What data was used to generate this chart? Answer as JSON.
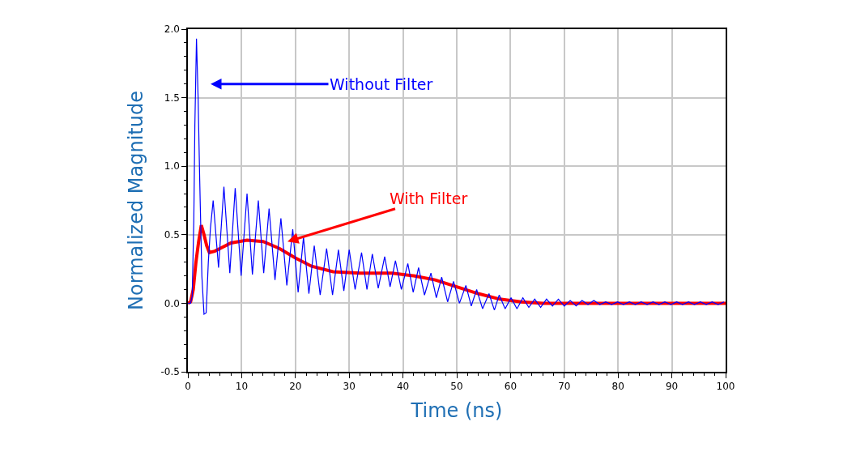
{
  "chart_data": {
    "type": "line",
    "xlabel": "Time (ns)",
    "ylabel": "Normalized Magnitude",
    "xlim": [
      0,
      100
    ],
    "ylim": [
      -0.5,
      2.0
    ],
    "xticks": [
      0,
      10,
      20,
      30,
      40,
      50,
      60,
      70,
      80,
      90,
      100
    ],
    "yticks": [
      {
        "value": -0.5,
        "label": "-0.5"
      },
      {
        "value": 0,
        "label": "0.0"
      },
      {
        "value": 0.5,
        "label": "0.5"
      },
      {
        "value": 1,
        "label": "1.0"
      },
      {
        "value": 1.5,
        "label": "1.5"
      },
      {
        "value": 2,
        "label": "2.0"
      }
    ],
    "grid": true,
    "marker": "none",
    "line_style": "solid",
    "series": [
      {
        "color": "#0000ff",
        "x": [
          0,
          0.5,
          0.8,
          1.1,
          1.3,
          1.6,
          1.9,
          2.2,
          2.6,
          3.0,
          3.4,
          3.8,
          4.2,
          4.7,
          5.7,
          6.7,
          7.8,
          8.8,
          9.9,
          11.0,
          12.0,
          13.1,
          14.1,
          15.1,
          16.2,
          17.3,
          18.4,
          19.5,
          20.5,
          21.5,
          22.5,
          23.5,
          24.6,
          25.8,
          26.9,
          28.0,
          29.0,
          30.0,
          31.1,
          32.3,
          33.3,
          34.3,
          35.4,
          36.6,
          37.6,
          38.6,
          39.7,
          40.9,
          41.9,
          42.9,
          44.0,
          45.2,
          46.2,
          47.2,
          48.3,
          49.4,
          50.5,
          51.7,
          52.7,
          53.7,
          54.8,
          56.0,
          57.0,
          57.9,
          59.0,
          60.1,
          61.2,
          62.3,
          63.4,
          64.5,
          65.6,
          66.7,
          67.8,
          68.9,
          70.0,
          71.1,
          72.2,
          73.3,
          74.4,
          75.5,
          76.6,
          77.7,
          78.8,
          79.9,
          81.0,
          82.1,
          83.2,
          84.3,
          85.4,
          86.5,
          87.6,
          88.7,
          89.8,
          90.9,
          92.0,
          93.1,
          94.2,
          95.3,
          96.4,
          97.5,
          98.6,
          99.7
        ],
        "values": [
          0,
          0,
          0.05,
          0.6,
          1.3,
          1.93,
          1.5,
          0.9,
          0.2,
          -0.08,
          -0.07,
          0.3,
          0.55,
          0.75,
          0.26,
          0.85,
          0.22,
          0.84,
          0.2,
          0.8,
          0.21,
          0.75,
          0.22,
          0.69,
          0.17,
          0.62,
          0.13,
          0.54,
          0.08,
          0.48,
          0.07,
          0.42,
          0.06,
          0.4,
          0.06,
          0.39,
          0.09,
          0.39,
          0.1,
          0.37,
          0.1,
          0.36,
          0.11,
          0.34,
          0.12,
          0.31,
          0.1,
          0.29,
          0.08,
          0.26,
          0.06,
          0.22,
          0.04,
          0.19,
          0.01,
          0.16,
          0,
          0.13,
          -0.02,
          0.1,
          -0.04,
          0.07,
          -0.05,
          0.06,
          -0.04,
          0.04,
          -0.04,
          0.04,
          -0.03,
          0.03,
          -0.03,
          0.03,
          -0.02,
          0.03,
          -0.02,
          0.02,
          -0.02,
          0.02,
          -0.01,
          0.02,
          -0.01,
          0.01,
          -0.01,
          0.01,
          -0.01,
          0.01,
          -0.01,
          0.01,
          -0.01,
          0.01,
          -0.01,
          0.01,
          -0.01,
          0.01,
          -0.01,
          0.01,
          -0.01,
          0.01,
          -0.01,
          0.01,
          -0.01,
          0.01
        ]
      },
      {
        "color": "#ff0000",
        "x": [
          0,
          0.5,
          1,
          1.5,
          2,
          2.5,
          3,
          3.5,
          4,
          5,
          6,
          8,
          11,
          14,
          17,
          20,
          23,
          27,
          32,
          38,
          42,
          46,
          50,
          54,
          58,
          62,
          66,
          70,
          80,
          90,
          100
        ],
        "values": [
          0,
          0.01,
          0.1,
          0.3,
          0.45,
          0.57,
          0.5,
          0.42,
          0.37,
          0.38,
          0.4,
          0.44,
          0.46,
          0.45,
          0.4,
          0.33,
          0.27,
          0.23,
          0.22,
          0.22,
          0.2,
          0.17,
          0.12,
          0.07,
          0.03,
          0.01,
          0,
          0,
          0,
          0,
          0
        ]
      }
    ],
    "annotations": [
      "Without Filter",
      "With Filter"
    ]
  }
}
